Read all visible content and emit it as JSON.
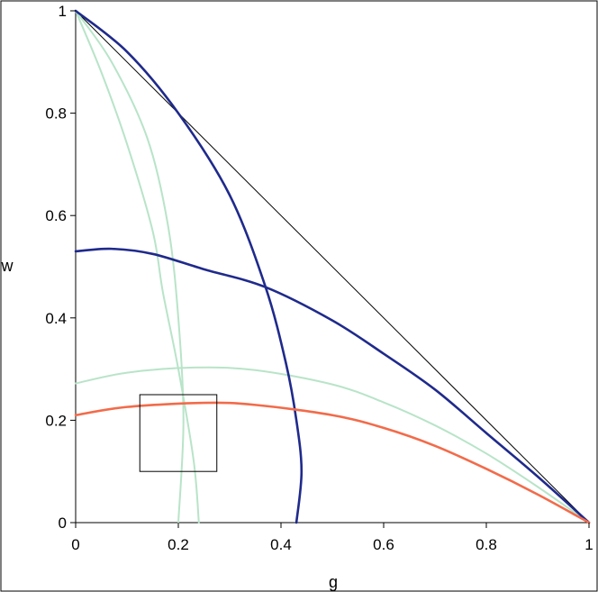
{
  "chart_data": {
    "type": "line",
    "xlabel": "g",
    "ylabel": "w",
    "xlim": [
      0,
      1
    ],
    "ylim": [
      0,
      1
    ],
    "x_ticks": [
      "0",
      "0.2",
      "0.4",
      "0.6",
      "0.8",
      "1"
    ],
    "y_ticks": [
      "0",
      "0.2",
      "0.4",
      "0.6",
      "0.8",
      "1"
    ],
    "grid": false,
    "legend": "none",
    "series": [
      {
        "color": "#000000",
        "style": "thin",
        "points": [
          [
            0,
            1
          ],
          [
            1,
            0
          ]
        ]
      },
      {
        "color": "#1f2a8c",
        "style": "thick",
        "points": [
          [
            0,
            1
          ],
          [
            0.1,
            0.92
          ],
          [
            0.2,
            0.8
          ],
          [
            0.3,
            0.64
          ],
          [
            0.37,
            0.46
          ],
          [
            0.41,
            0.31
          ],
          [
            0.43,
            0.2
          ],
          [
            0.44,
            0.1
          ],
          [
            0.43,
            0
          ]
        ]
      },
      {
        "color": "#1f2a8c",
        "style": "thick",
        "points": [
          [
            0,
            0.53
          ],
          [
            0.07,
            0.535
          ],
          [
            0.15,
            0.525
          ],
          [
            0.25,
            0.495
          ],
          [
            0.37,
            0.46
          ],
          [
            0.5,
            0.395
          ],
          [
            0.6,
            0.33
          ],
          [
            0.7,
            0.26
          ],
          [
            0.8,
            0.175
          ],
          [
            0.9,
            0.09
          ],
          [
            1,
            0
          ]
        ]
      },
      {
        "color": "#b8e4c8",
        "style": "medium",
        "points": [
          [
            0,
            1
          ],
          [
            0.05,
            0.88
          ],
          [
            0.1,
            0.74
          ],
          [
            0.15,
            0.57
          ],
          [
            0.17,
            0.45
          ],
          [
            0.2,
            0.3
          ],
          [
            0.23,
            0.12
          ],
          [
            0.24,
            0
          ]
        ]
      },
      {
        "color": "#b8e4c8",
        "style": "medium",
        "points": [
          [
            0,
            1
          ],
          [
            0.07,
            0.9
          ],
          [
            0.14,
            0.75
          ],
          [
            0.18,
            0.58
          ],
          [
            0.2,
            0.4
          ],
          [
            0.21,
            0.2
          ],
          [
            0.2,
            0
          ]
        ]
      },
      {
        "color": "#b8e4c8",
        "style": "medium",
        "points": [
          [
            0,
            0.272
          ],
          [
            0.1,
            0.293
          ],
          [
            0.23,
            0.303
          ],
          [
            0.35,
            0.298
          ],
          [
            0.5,
            0.27
          ],
          [
            0.6,
            0.235
          ],
          [
            0.7,
            0.19
          ],
          [
            0.8,
            0.135
          ],
          [
            0.9,
            0.07
          ],
          [
            1,
            0
          ]
        ]
      },
      {
        "color": "#f26b4a",
        "style": "thick",
        "points": [
          [
            0,
            0.21
          ],
          [
            0.1,
            0.226
          ],
          [
            0.25,
            0.234
          ],
          [
            0.35,
            0.23
          ],
          [
            0.5,
            0.21
          ],
          [
            0.6,
            0.185
          ],
          [
            0.7,
            0.15
          ],
          [
            0.8,
            0.105
          ],
          [
            0.9,
            0.055
          ],
          [
            1,
            0
          ]
        ]
      }
    ],
    "annotations": [
      {
        "kind": "rectangle",
        "color": "#000000",
        "x": [
          0.125,
          0.275
        ],
        "y": [
          0.1,
          0.25
        ]
      }
    ]
  }
}
